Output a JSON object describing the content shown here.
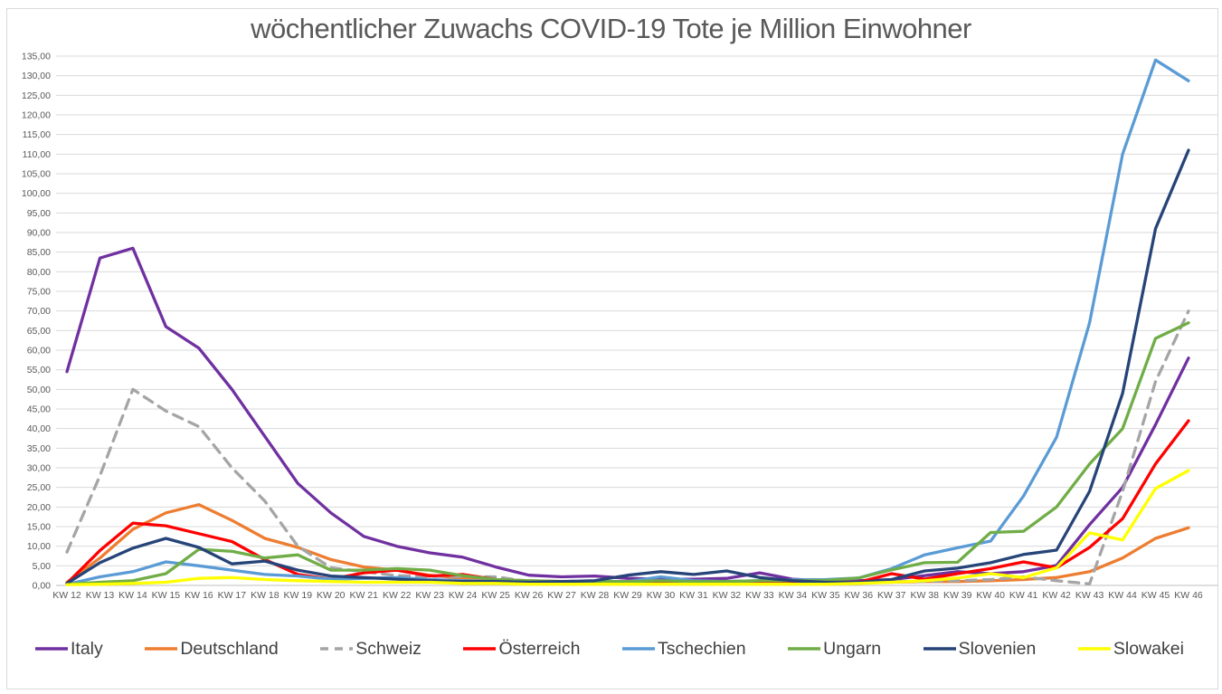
{
  "chart_data": {
    "type": "line",
    "title": "wöchentlicher Zuwachs COVID-19 Tote je Million Einwohner",
    "xlabel": "",
    "ylabel": "",
    "ylim": [
      0,
      135
    ],
    "y_tick_step": 5,
    "grid": true,
    "legend_position": "bottom",
    "y_tick_labels": [
      "0,00",
      "5,00",
      "10,00",
      "15,00",
      "20,00",
      "25,00",
      "30,00",
      "35,00",
      "40,00",
      "45,00",
      "50,00",
      "55,00",
      "60,00",
      "65,00",
      "70,00",
      "75,00",
      "80,00",
      "85,00",
      "90,00",
      "95,00",
      "100,00",
      "105,00",
      "110,00",
      "115,00",
      "120,00",
      "125,00",
      "130,00",
      "135,00"
    ],
    "categories": [
      "KW 12",
      "KW 13",
      "KW 14",
      "KW 15",
      "KW 16",
      "KW 17",
      "KW 18",
      "KW 19",
      "KW 20",
      "KW 21",
      "KW 22",
      "KW 23",
      "KW 24",
      "KW 25",
      "KW 26",
      "KW 27",
      "KW 28",
      "KW 29",
      "KW 30",
      "KW 31",
      "KW 32",
      "KW 33",
      "KW 34",
      "KW 35",
      "KW 36",
      "KW 37",
      "KW 38",
      "KW 39",
      "KW 40",
      "KW 41",
      "KW 42",
      "KW 43",
      "KW 44",
      "KW 45",
      "KW 46"
    ],
    "series": [
      {
        "name": "Italy",
        "color": "#7030A0",
        "dash": false,
        "values": [
          54.5,
          83.5,
          86,
          66,
          60.5,
          50,
          38,
          26,
          18.5,
          12.5,
          10,
          8.3,
          7.2,
          4.7,
          2.6,
          2.2,
          2.4,
          1.8,
          1.6,
          1.6,
          1.8,
          3.2,
          1.6,
          1.2,
          1.2,
          1.5,
          2.5,
          3.5,
          3,
          3.5,
          5.1,
          15.5,
          25,
          41,
          58
        ]
      },
      {
        "name": "Deutschland",
        "color": "#ED7D31",
        "dash": false,
        "values": [
          0.8,
          7,
          14.3,
          18.5,
          20.6,
          16.6,
          12,
          9.7,
          6.6,
          4.7,
          3.9,
          2.6,
          1.8,
          1.5,
          1.2,
          1,
          0.8,
          0.8,
          0.8,
          0.8,
          0.8,
          0.8,
          0.8,
          0.8,
          0.8,
          0.8,
          1,
          1,
          1.2,
          1.5,
          2,
          3.5,
          7,
          12,
          14.7
        ]
      },
      {
        "name": "Schweiz",
        "color": "#A5A5A5",
        "dash": true,
        "values": [
          8.5,
          28,
          50,
          44.5,
          40.5,
          30,
          21.5,
          10,
          4.5,
          3.5,
          2.5,
          2.3,
          2.3,
          2.2,
          1,
          1,
          0.8,
          0.8,
          0.8,
          0.8,
          0.8,
          0.8,
          0.8,
          0.8,
          0.8,
          1,
          1,
          1.2,
          1.5,
          2.2,
          1.2,
          0.4,
          24,
          52,
          70
        ]
      },
      {
        "name": "Österreich",
        "color": "#FF0000",
        "dash": false,
        "values": [
          0.5,
          8.9,
          15.9,
          15.2,
          13.2,
          11.2,
          6.6,
          2.8,
          1.6,
          3.2,
          3.9,
          2.4,
          2.8,
          1.5,
          1,
          0.8,
          0.8,
          0.8,
          0.8,
          0.8,
          0.8,
          0.8,
          0.8,
          0.8,
          0.8,
          3,
          1.6,
          3,
          4.3,
          6,
          4.5,
          9.7,
          17,
          31,
          42
        ]
      },
      {
        "name": "Tschechien",
        "color": "#5B9BD5",
        "dash": false,
        "values": [
          0.3,
          2.2,
          3.5,
          6,
          5,
          3.9,
          2.8,
          2.4,
          1.6,
          1.8,
          2,
          1.5,
          1.2,
          1,
          0.8,
          0.8,
          0.8,
          1,
          2.2,
          1.2,
          1,
          1.2,
          1.4,
          1.5,
          1.9,
          4.3,
          7.8,
          9.6,
          11.3,
          22.8,
          37.8,
          67,
          110,
          134,
          128.7
        ]
      },
      {
        "name": "Ungarn",
        "color": "#70AD47",
        "dash": false,
        "values": [
          0.3,
          0.8,
          1.2,
          3,
          9.2,
          8.7,
          7,
          7.8,
          3.9,
          3.9,
          4.3,
          3.9,
          2.5,
          1.5,
          1.2,
          1,
          1,
          1,
          1.2,
          1,
          1,
          1.2,
          1.2,
          1.3,
          1.9,
          4,
          5.8,
          5.9,
          13.5,
          13.8,
          20,
          31,
          40,
          63,
          67
        ]
      },
      {
        "name": "Slovenien",
        "color": "#264478",
        "dash": false,
        "values": [
          0.5,
          5.8,
          9.5,
          12,
          9.7,
          5.5,
          6.2,
          3.9,
          2.4,
          2,
          1.6,
          1.2,
          1,
          1,
          0.8,
          1,
          1.2,
          2.6,
          3.5,
          2.8,
          3.7,
          2,
          1.2,
          0.8,
          0.8,
          1.5,
          3.7,
          4.4,
          5.8,
          7.9,
          9,
          24,
          49,
          91,
          111
        ]
      },
      {
        "name": "Slowakei",
        "color": "#FFFF00",
        "dash": false,
        "values": [
          0.2,
          0.3,
          0.5,
          0.8,
          1.8,
          2,
          1.5,
          1.2,
          1,
          0.8,
          0.8,
          0.8,
          0.5,
          0.5,
          0.3,
          0.3,
          0.3,
          0.3,
          0.3,
          0.3,
          0.3,
          0.3,
          0.3,
          0.3,
          0.5,
          0.8,
          1.2,
          1.9,
          3,
          2,
          4.5,
          13.4,
          11.6,
          24.7,
          29.3
        ]
      }
    ]
  },
  "style": {
    "grid_color": "#D9D9D9",
    "axis_color": "#BFBFBF",
    "tick_text_color": "#595959",
    "title_color": "#595959",
    "legend_text_color": "#404040",
    "background": "#FFFFFF"
  }
}
